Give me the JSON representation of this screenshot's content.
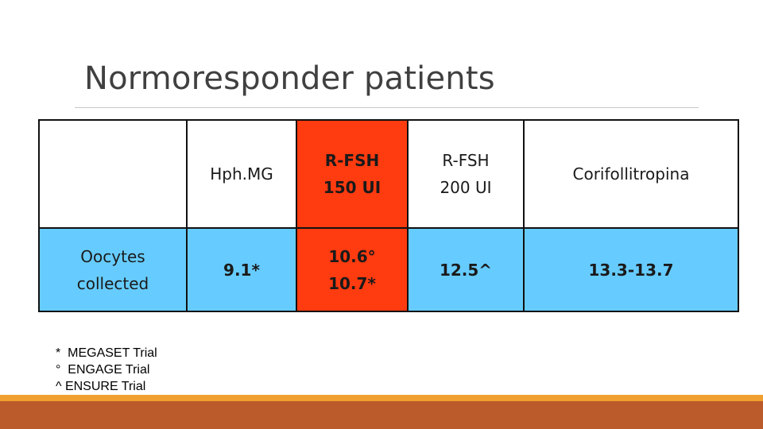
{
  "title": "Normoresponder patients",
  "table": {
    "header": {
      "row_label": "",
      "cells": [
        {
          "lines": [
            "Hph.MG"
          ]
        },
        {
          "lines": [
            "R-FSH",
            "150 UI"
          ]
        },
        {
          "lines": [
            "R-FSH",
            "200 UI"
          ]
        },
        {
          "lines": [
            "Corifollitropina"
          ]
        }
      ]
    },
    "row": {
      "label_lines": [
        "Oocytes",
        "collected"
      ],
      "cells": [
        {
          "lines": [
            "9.1*"
          ]
        },
        {
          "lines": [
            "10.6°",
            "10.7*"
          ]
        },
        {
          "lines": [
            "12.5^"
          ]
        },
        {
          "lines": [
            "13.3-13.7"
          ]
        }
      ]
    }
  },
  "footnotes": [
    "*  MEGASET Trial",
    "°  ENGAGE Trial",
    "^ ENSURE Trial"
  ],
  "colors": {
    "highlight_column": "#ff3b10",
    "data_row": "#66ccff",
    "footer_accent": "#f0a030",
    "footer_bar": "#bb5a2a"
  }
}
